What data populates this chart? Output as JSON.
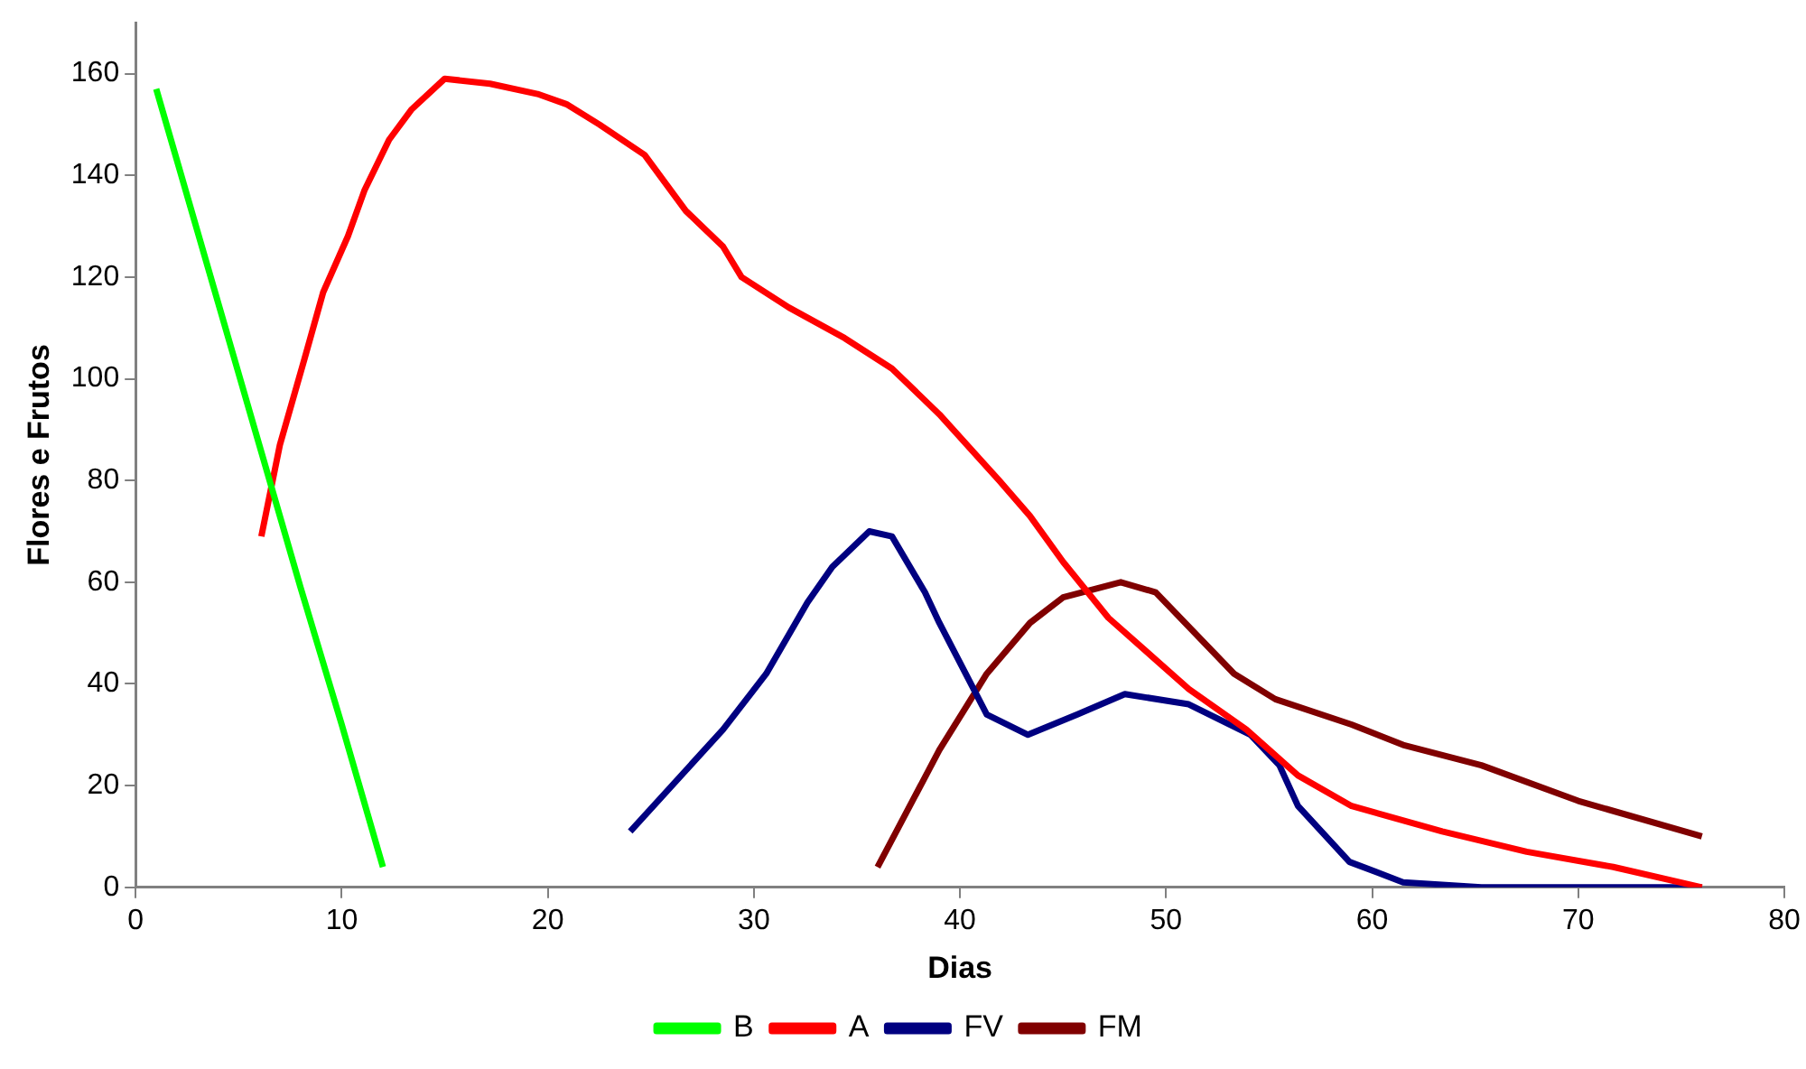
{
  "chart_data": {
    "type": "line",
    "xlabel": "Dias",
    "ylabel": "Flores e Frutos",
    "xlim": [
      0,
      80
    ],
    "xticks": [
      0,
      10,
      20,
      30,
      40,
      50,
      60,
      70,
      80
    ],
    "ylim": [
      0,
      170
    ],
    "yticks": [
      0,
      20,
      40,
      60,
      80,
      100,
      120,
      140,
      160
    ],
    "grid": false,
    "legend": "bottom",
    "marker": "none",
    "line_style": "solid",
    "series": [
      {
        "name": "B",
        "color": "#00ff00",
        "x": [
          1,
          2,
          4,
          6,
          8,
          10,
          12
        ],
        "values": [
          157,
          143,
          115,
          87,
          59,
          32,
          4
        ]
      },
      {
        "name": "A",
        "color": "#ff0000",
        "x": [
          6.1,
          7,
          8.2,
          9.1,
          10.3,
          11.1,
          12.3,
          13.4,
          15,
          17.2,
          19.5,
          20.9,
          22.5,
          24.7,
          26.7,
          28.5,
          29.4,
          31.7,
          34.4,
          36.7,
          39,
          41.9,
          43.4,
          45,
          47.2,
          51.1,
          53.9,
          56.4,
          59,
          63.4,
          67.5,
          71.7,
          76
        ],
        "values": [
          69,
          87,
          104,
          117,
          128,
          137,
          147,
          153,
          159,
          158,
          156,
          154,
          150,
          144,
          133,
          126,
          120,
          114,
          108,
          102,
          93,
          80,
          73,
          64,
          53,
          39,
          31,
          22,
          16,
          11,
          7,
          4,
          0
        ]
      },
      {
        "name": "FV",
        "color": "#000080",
        "x": [
          24,
          28.5,
          30.6,
          32.6,
          33.8,
          35.6,
          36.7,
          38.3,
          39,
          41.3,
          43.3,
          45.7,
          48,
          51.1,
          54.1,
          55.5,
          56.4,
          58.9,
          61.5,
          65.3,
          76
        ],
        "values": [
          11,
          31,
          42,
          56,
          63,
          70,
          69,
          58,
          52,
          34,
          30,
          34,
          38,
          36,
          30,
          24,
          16,
          5,
          1,
          0,
          0
        ]
      },
      {
        "name": "FM",
        "color": "#800000",
        "x": [
          36,
          39,
          41.3,
          43.4,
          45,
          47.8,
          49.5,
          53.3,
          55.3,
          59,
          61.5,
          65.3,
          70,
          76
        ],
        "values": [
          4,
          27,
          42,
          52,
          57,
          60,
          58,
          42,
          37,
          32,
          28,
          24,
          17,
          10
        ]
      }
    ]
  }
}
